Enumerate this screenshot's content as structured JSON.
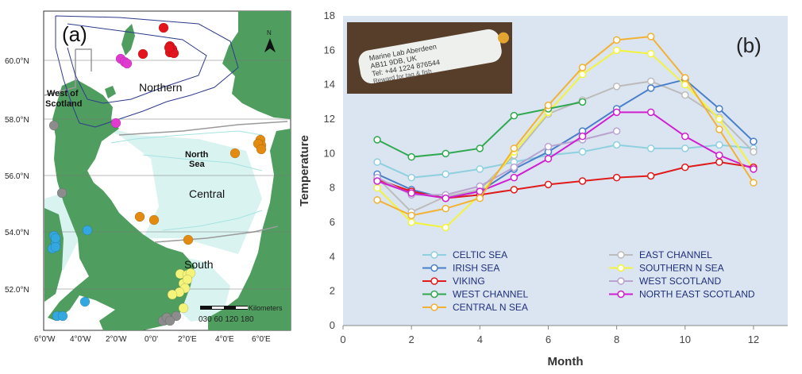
{
  "colors": {
    "chart_bg": "#dbe5f1",
    "map_sea": "#ffffff",
    "map_land": "#4f9e5f",
    "shallow": "#d9f3f1",
    "coast_line": "#a5e3e1",
    "blue_line": "#2e3a8c",
    "northern": "#e3141b",
    "pink": "#e03ad1",
    "grey": "#8c8c8c",
    "orange": "#e38a10",
    "yellow": "#f4f47a",
    "sky": "#33a8e0"
  },
  "map": {
    "panel_label": "(a)",
    "north_label": "N",
    "regions": {
      "northern": "Northern",
      "west_scotland_line1": "West of",
      "west_scotland_line2": "Scotland",
      "north_sea_line1": "North",
      "north_sea_line2": "Sea",
      "central": "Central",
      "south": "South"
    },
    "lat_labels": [
      "60.0°N",
      "58.0°N",
      "56.0°N",
      "54.0°N",
      "52.0°N"
    ],
    "lon_labels": [
      "6°0'W",
      "4°0'W",
      "2°0'W",
      "0°0'",
      "2°0'E",
      "4°0'E",
      "6°0'E"
    ],
    "scale": {
      "unit": "Kilometers",
      "ticks": "030 60 120 180"
    }
  },
  "photo": {
    "line1": "Marine Lab Aberdeen",
    "line2": "AB11 9DB, UK",
    "line3": "Tel: +44 1224 876544",
    "line4": "Reward for tag & fish"
  },
  "chart_data": {
    "type": "line",
    "panel_label": "(b)",
    "xlabel": "Month",
    "ylabel": "Temperature",
    "xlim": [
      0,
      13
    ],
    "ylim": [
      0,
      18
    ],
    "xticks": [
      0,
      2,
      4,
      6,
      8,
      10,
      12
    ],
    "yticks": [
      0,
      2,
      4,
      6,
      8,
      10,
      12,
      14,
      16,
      18
    ],
    "legend_placement": "bottom-center",
    "series": [
      {
        "name": "CELTIC SEA",
        "color": "#8fd0de",
        "x": [
          1,
          2,
          3,
          4,
          5,
          6,
          7,
          8,
          9,
          10,
          11,
          12
        ],
        "values": [
          9.5,
          8.6,
          8.8,
          9.1,
          9.5,
          9.9,
          10.1,
          10.5,
          10.3,
          10.3,
          10.5,
          10.3
        ]
      },
      {
        "name": "EAST CHANNEL",
        "color": "#bcbcbc",
        "x": [
          1,
          2,
          3,
          4,
          5,
          6,
          7,
          8,
          9,
          10,
          11,
          12
        ],
        "values": [
          8.6,
          6.6,
          7.5,
          7.9,
          9.9,
          12.3,
          13.1,
          13.9,
          14.2,
          13.4,
          12.1,
          10.1
        ]
      },
      {
        "name": "IRISH SEA",
        "color": "#4a7fca",
        "x": [
          1,
          2,
          3,
          4,
          5,
          6,
          7,
          8,
          9,
          10,
          11,
          12
        ],
        "values": [
          8.8,
          7.9,
          7.4,
          7.8,
          9.1,
          10.1,
          11.3,
          12.6,
          13.8,
          14.3,
          12.6,
          10.7
        ]
      },
      {
        "name": "SOUTHERN N SEA",
        "color": "#f3f33c",
        "x": [
          1,
          2,
          3,
          4,
          5,
          6,
          7,
          8,
          9,
          10,
          11,
          12
        ],
        "values": [
          8.0,
          6.0,
          5.7,
          7.6,
          10.1,
          12.4,
          14.6,
          16.0,
          15.8,
          14.0,
          12.0,
          9.1
        ]
      },
      {
        "name": "VIKING",
        "color": "#e01b1b",
        "x": [
          1,
          2,
          3,
          4,
          5,
          6,
          7,
          8,
          9,
          10,
          11,
          12
        ],
        "values": [
          8.5,
          7.8,
          7.4,
          7.6,
          7.9,
          8.2,
          8.4,
          8.6,
          8.7,
          9.2,
          9.5,
          9.2
        ]
      },
      {
        "name": "WEST SCOTLAND",
        "color": "#b9a3cf",
        "x": [
          1,
          2,
          3,
          4,
          5,
          6,
          7,
          8
        ],
        "values": [
          8.6,
          7.6,
          7.6,
          8.1,
          9.2,
          10.4,
          10.8,
          11.3
        ]
      },
      {
        "name": "WEST CHANNEL",
        "color": "#2fa84f",
        "x": [
          1,
          2,
          3,
          4,
          5,
          6,
          7
        ],
        "values": [
          10.8,
          9.8,
          10.0,
          10.3,
          12.2,
          12.6,
          13.0
        ]
      },
      {
        "name": "NORTH EAST SCOTLAND",
        "color": "#d01fd0",
        "x": [
          1,
          2,
          3,
          4,
          5,
          6,
          7,
          8,
          9,
          10,
          11,
          12
        ],
        "values": [
          8.4,
          7.7,
          7.4,
          7.8,
          8.6,
          9.7,
          11.0,
          12.4,
          12.4,
          11.0,
          9.9,
          9.1
        ]
      },
      {
        "name": "CENTRAL N SEA",
        "color": "#f2b132",
        "x": [
          1,
          2,
          3,
          4,
          5,
          6,
          7,
          8,
          9,
          10,
          11,
          12
        ],
        "values": [
          7.3,
          6.4,
          6.8,
          7.4,
          10.3,
          12.8,
          15.0,
          16.6,
          16.8,
          14.4,
          11.4,
          8.3
        ]
      }
    ]
  }
}
